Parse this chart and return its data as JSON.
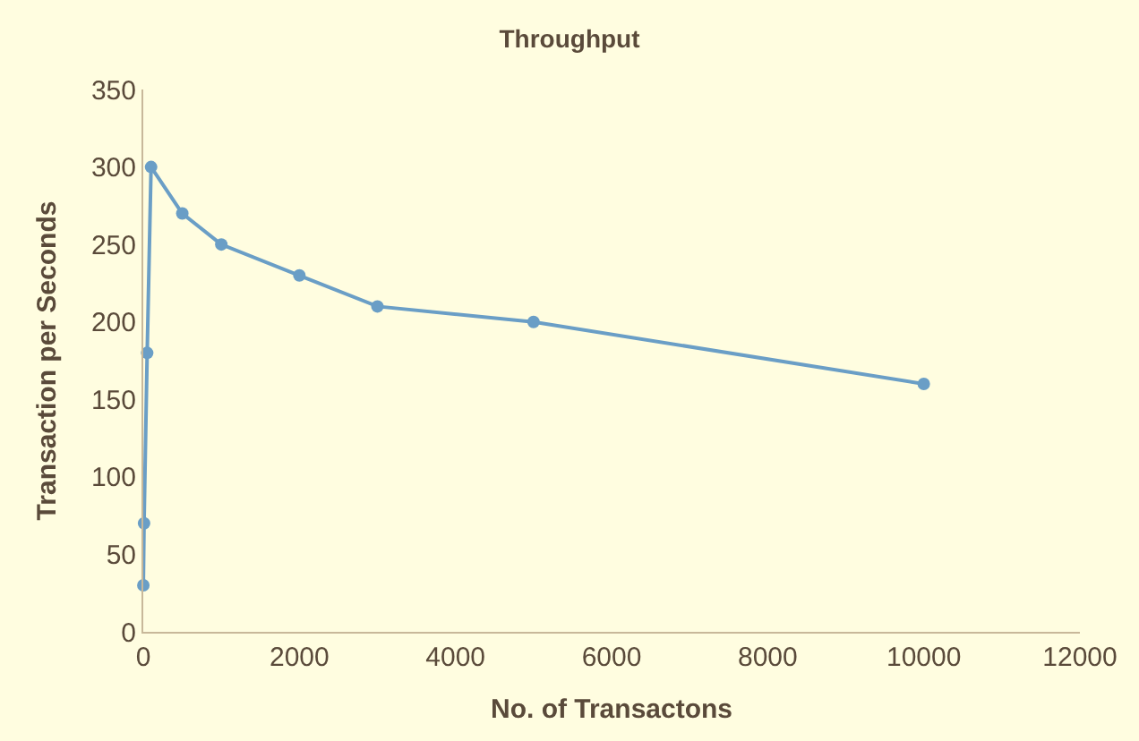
{
  "chart_data": {
    "type": "line",
    "title": "Throughput",
    "xlabel": "No. of Transactons",
    "ylabel": "Transaction per Seconds",
    "x": [
      1,
      10,
      50,
      100,
      500,
      1000,
      2000,
      3000,
      5000,
      10000
    ],
    "series": [
      {
        "color": "#6a9ec6",
        "values": [
          30,
          70,
          180,
          300,
          270,
          250,
          230,
          210,
          200,
          160
        ]
      }
    ],
    "xlim": [
      0,
      12000
    ],
    "xticks": [
      0,
      2000,
      4000,
      6000,
      8000,
      10000,
      12000
    ],
    "ylim": [
      0,
      350
    ],
    "yticks": [
      0,
      50,
      100,
      150,
      200,
      250,
      300,
      350
    ],
    "grid": false,
    "legend": false,
    "marker": "circle",
    "line_style": "solid"
  }
}
